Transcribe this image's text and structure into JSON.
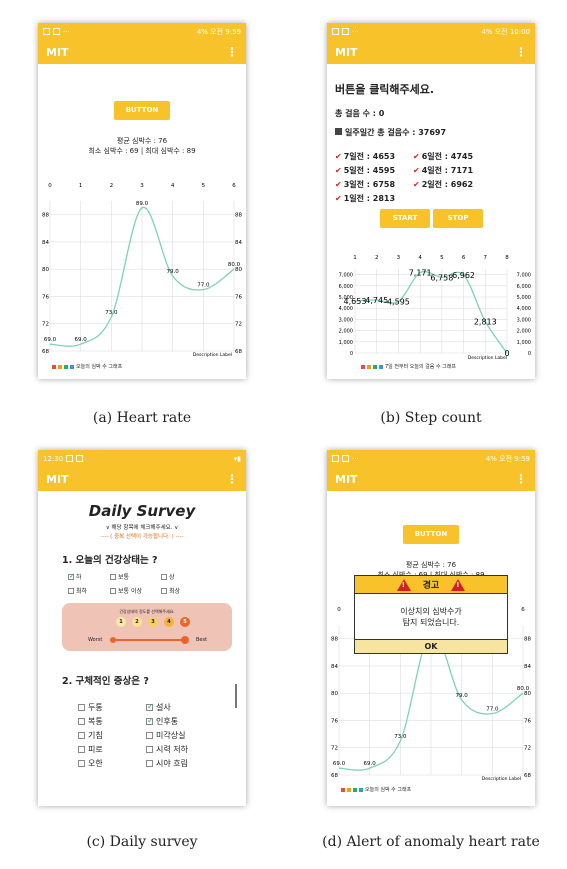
{
  "captions": {
    "a": "(a) Heart rate",
    "b": "(b) Step count",
    "c": "(c) Daily survey",
    "d": "(d) Alert of anomaly heart rate"
  },
  "status": {
    "a_time": "4% 오전 9:59",
    "b_time": "4% 오전 10:00",
    "c_time": "12:30",
    "d_time": "4% 오전 9:59"
  },
  "appbar": {
    "title": "MIT",
    "menu": "⋮"
  },
  "heart": {
    "button_label": "BUTTON",
    "avg_label": "평균 심박수 : 76",
    "minmax_label": "최소 심박수 : 69  |  최대 심박수 : 89",
    "description_label": "Description Label",
    "legend_label": "오늘의 심박 수 그래프",
    "legend_colors": [
      "#e74c3c",
      "#f39c12",
      "#27ae60",
      "#3498db"
    ]
  },
  "steps": {
    "title": "버튼을 클릭해주세요.",
    "total_label": "총 걸음 수 : 0",
    "week_total_label": "일주일간 총 걸음수 : 37697",
    "days": [
      "7일전 : 4653",
      "6일전 : 4745",
      "5일전 : 4595",
      "4일전 : 7171",
      "3일전 : 6758",
      "2일전 : 6962",
      "1일전 : 2813"
    ],
    "start_label": "START",
    "stop_label": "STOP",
    "description_label": "Description Label",
    "legend_label": "7일 전부터 오늘의 걸음 수 그래프"
  },
  "survey": {
    "title": "Daily Survey",
    "subtitle": "∨ 해당 항목에 체크해주세요. ∨",
    "note": "---- ( 중복 선택이 가능합니다. ) ----",
    "q1": "1. 오늘의 건강상태는 ?",
    "q1_options": [
      "하",
      "보통",
      "상",
      "최하",
      "보통 이상",
      "최상"
    ],
    "q1_checked": [
      true,
      false,
      false,
      false,
      false,
      false
    ],
    "slider_hint": "건강상태의 정도를 선택해주세요.",
    "slider_values": [
      "1",
      "2",
      "3",
      "4",
      "5"
    ],
    "slider_selected": 5,
    "slider_worst": "Worst",
    "slider_best": "Best",
    "q2": "2. 구체적인 증상은 ?",
    "q2_options": [
      "두통",
      "설사",
      "복통",
      "인후통",
      "기침",
      "미각상실",
      "피로",
      "시력 저하",
      "오한",
      "시야 흐림"
    ],
    "q2_checked": [
      false,
      true,
      false,
      true,
      false,
      false,
      false,
      false,
      false,
      false
    ]
  },
  "alert": {
    "header": "경고",
    "message_line1": "이상치의 심박수가",
    "message_line2": "탐지 되었습니다.",
    "ok_label": "OK"
  },
  "chart_data": [
    {
      "type": "line",
      "name": "heart-rate",
      "x": [
        0,
        1,
        2,
        3,
        4,
        5,
        6
      ],
      "y": [
        69.0,
        69.0,
        73.0,
        89.0,
        79.0,
        77.0,
        80.0
      ],
      "point_labels": [
        "69.0",
        "69.0",
        "73.0",
        "89.0",
        "79.0",
        "77.0",
        "80.0"
      ],
      "x_ticks": [
        "0",
        "1",
        "2",
        "3",
        "4",
        "5",
        "6"
      ],
      "y_ticks": [
        "68",
        "72",
        "76",
        "80",
        "84",
        "88"
      ],
      "ylim": [
        68,
        90
      ],
      "legend": "오늘의 심박 수 그래프",
      "color": "#7dd3b6"
    },
    {
      "type": "line",
      "name": "step-count",
      "x": [
        1,
        2,
        3,
        4,
        5,
        6,
        7,
        8
      ],
      "y": [
        4653,
        4745,
        4595,
        7171,
        6758,
        6962,
        2813,
        0
      ],
      "point_labels": [
        "4,653",
        "4,745",
        "4,595",
        "7,171",
        "6,758",
        "6,962",
        "2,813",
        "0"
      ],
      "x_ticks": [
        "1",
        "2",
        "3",
        "4",
        "5",
        "6",
        "7",
        "8"
      ],
      "y_ticks": [
        "0",
        "1,000",
        "2,000",
        "3,000",
        "4,000",
        "5,000",
        "6,000",
        "7,000"
      ],
      "ylim": [
        0,
        7500
      ],
      "legend": "7일 전부터 오늘의 걸음 수 그래프",
      "color": "#7dd3b6"
    }
  ]
}
